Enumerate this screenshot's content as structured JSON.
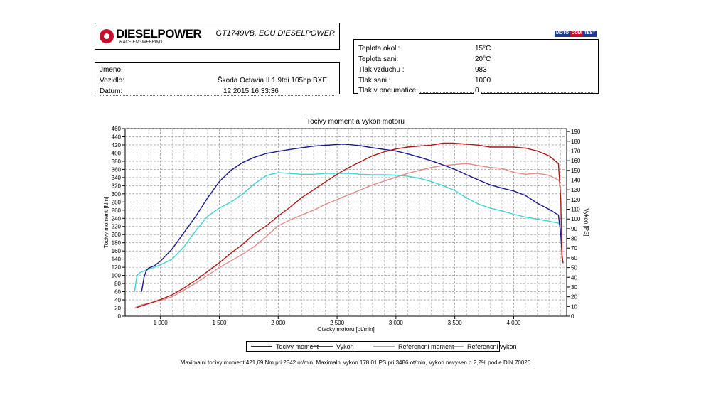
{
  "header": {
    "brand": "DIESELPOWER",
    "brand_sub": "RACE ENGINEERING",
    "engine": "GT1749VB, ECU DIESELPOWER",
    "mototest": [
      "MOTO",
      "COM",
      "TEST"
    ]
  },
  "vehicle": {
    "rows": [
      {
        "label": "Jmeno:",
        "value": ""
      },
      {
        "label": "Vozidlo:",
        "value": "Škoda Octavia II 1.9tdi 105hp BXE"
      },
      {
        "label": "Datum:",
        "value": "12.2015 16:33:36"
      }
    ]
  },
  "conditions": {
    "rows": [
      {
        "label": "Teplota okoli:",
        "value": "15°C"
      },
      {
        "label": "Teplota sani:",
        "value": "20°C"
      },
      {
        "label": "Tlak vzduchu :",
        "value": "983"
      },
      {
        "label": "Tlak sani :",
        "value": "1000"
      },
      {
        "label": "Tlak v pneumatice:",
        "value": "0"
      }
    ]
  },
  "colors": {
    "torque": "#1a1a8c",
    "power": "#b01818",
    "ref_torque": "#3fd4d4",
    "ref_power": "#e08c8c"
  },
  "chart_data": {
    "type": "line",
    "title": "Tocivy moment a vykon motoru",
    "xlabel": "Otacky motoru [ot/min]",
    "ylabel_left": "Tocivy moment [Nm]",
    "ylabel_right": "Vykon [PS]",
    "xlim": [
      700,
      4450
    ],
    "ylim_left": [
      0,
      460
    ],
    "ylim_right": [
      0,
      193
    ],
    "x_ticks": [
      1000,
      1500,
      2000,
      2500,
      3000,
      3500,
      4000
    ],
    "x_tick_labels": [
      "1 000",
      "1 500",
      "2 000",
      "2 500",
      "3 000",
      "3 500",
      "4 000"
    ],
    "y_left_ticks": [
      0,
      20,
      40,
      60,
      80,
      100,
      120,
      140,
      160,
      180,
      200,
      220,
      240,
      260,
      280,
      300,
      320,
      340,
      360,
      380,
      400,
      420,
      440,
      460
    ],
    "y_right_ticks": [
      0,
      10,
      20,
      30,
      40,
      50,
      60,
      70,
      80,
      90,
      100,
      110,
      120,
      130,
      140,
      150,
      160,
      170,
      180,
      190
    ],
    "grid": true,
    "legend_position": "bottom",
    "series": [
      {
        "name": "Tocivy moment",
        "axis": "left",
        "color_key": "torque",
        "x": [
          840,
          860,
          880,
          900,
          950,
          1000,
          1100,
          1200,
          1300,
          1400,
          1500,
          1600,
          1700,
          1800,
          1900,
          2000,
          2100,
          2200,
          2300,
          2400,
          2500,
          2542,
          2600,
          2700,
          2800,
          2900,
          3000,
          3100,
          3200,
          3300,
          3400,
          3500,
          3600,
          3700,
          3800,
          3900,
          4000,
          4100,
          4200,
          4300,
          4380,
          4400,
          4410,
          4420
        ],
        "y": [
          60,
          95,
          112,
          118,
          124,
          135,
          165,
          205,
          245,
          290,
          330,
          358,
          377,
          390,
          399,
          404,
          409,
          413,
          417,
          419,
          421,
          422,
          421,
          418,
          413,
          409,
          405,
          398,
          390,
          381,
          371,
          360,
          347,
          334,
          322,
          314,
          307,
          296,
          277,
          262,
          248,
          200,
          150,
          130
        ]
      },
      {
        "name": "Vykon",
        "axis": "right",
        "color_key": "power",
        "x": [
          800,
          850,
          900,
          950,
          1000,
          1100,
          1200,
          1300,
          1400,
          1500,
          1600,
          1700,
          1800,
          1900,
          2000,
          2100,
          2200,
          2300,
          2400,
          2500,
          2600,
          2700,
          2800,
          2900,
          3000,
          3100,
          3200,
          3300,
          3400,
          3486,
          3600,
          3700,
          3800,
          3900,
          4000,
          4100,
          4200,
          4300,
          4380,
          4400,
          4410,
          4420
        ],
        "y": [
          9,
          11,
          13,
          15,
          17,
          22,
          29,
          37,
          46,
          55,
          65,
          74,
          85,
          93,
          103,
          112,
          122,
          130,
          138,
          146,
          153,
          159,
          165,
          169,
          172,
          174,
          175,
          176,
          178,
          178,
          177,
          176,
          174,
          174,
          174,
          173,
          170,
          165,
          157,
          120,
          60,
          55
        ]
      },
      {
        "name": "Referencni moment",
        "axis": "left",
        "color_key": "ref_torque",
        "x": [
          780,
          790,
          800,
          820,
          850,
          900,
          950,
          1000,
          1100,
          1200,
          1300,
          1400,
          1500,
          1600,
          1700,
          1800,
          1900,
          2000,
          2100,
          2200,
          2300,
          2400,
          2500,
          2600,
          2700,
          2800,
          2900,
          3000,
          3100,
          3200,
          3300,
          3400,
          3500,
          3600,
          3700,
          3800,
          3900,
          4000,
          4100,
          4200,
          4300,
          4380,
          4400
        ],
        "y": [
          60,
          80,
          100,
          106,
          110,
          115,
          120,
          126,
          140,
          170,
          210,
          245,
          265,
          280,
          300,
          325,
          345,
          352,
          350,
          348,
          348,
          350,
          350,
          350,
          348,
          347,
          347,
          346,
          343,
          338,
          330,
          320,
          308,
          290,
          275,
          265,
          258,
          250,
          243,
          238,
          233,
          228,
          225
        ]
      },
      {
        "name": "Referencni vykon",
        "axis": "right",
        "color_key": "ref_power",
        "x": [
          780,
          800,
          850,
          900,
          950,
          1000,
          1100,
          1200,
          1300,
          1400,
          1500,
          1600,
          1700,
          1800,
          1900,
          2000,
          2100,
          2200,
          2300,
          2400,
          2500,
          2600,
          2700,
          2800,
          2900,
          3000,
          3100,
          3200,
          3300,
          3400,
          3500,
          3600,
          3700,
          3800,
          3900,
          4000,
          4100,
          4200,
          4300,
          4380,
          4400
        ],
        "y": [
          8,
          10,
          12,
          13,
          15,
          16,
          20,
          27,
          34,
          42,
          50,
          57,
          64,
          72,
          82,
          93,
          99,
          104,
          109,
          115,
          120,
          125,
          130,
          135,
          139,
          143,
          147,
          150,
          153,
          155,
          156,
          157,
          155,
          153,
          152,
          148,
          146,
          147,
          145,
          140,
          137
        ]
      }
    ]
  },
  "legend": [
    "Tocivy moment",
    "Vykon",
    "Referencni moment",
    "Referencni vykon"
  ],
  "footer": "Maximalni tocivy moment 421,69 Nm pri 2542 ot/min,  Maximalni vykon 178,01 PS pri 3486 ot/min,  Vykon navysen o 2,2% podle DIN 70020"
}
